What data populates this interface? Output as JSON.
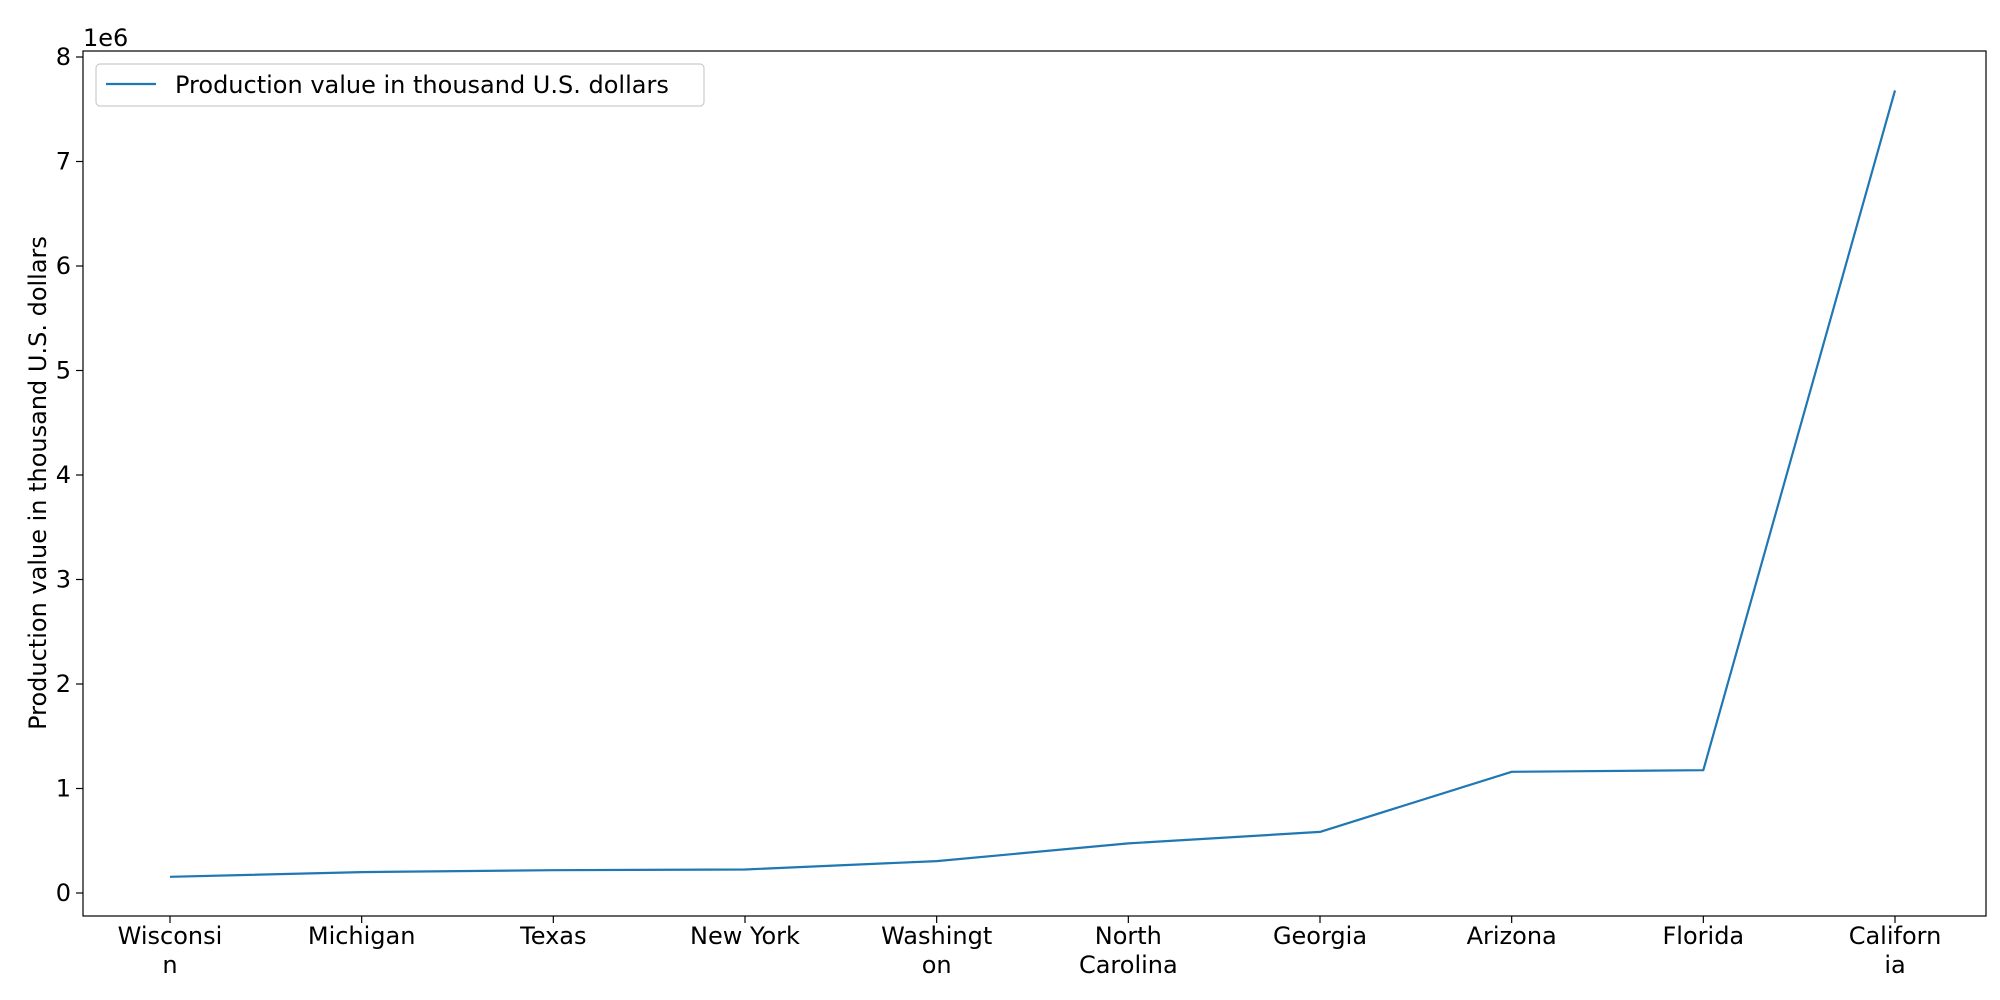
{
  "chart_data": {
    "type": "line",
    "categories": [
      "Wisconsin",
      "Michigan",
      "Texas",
      "New York",
      "Washington",
      "North Carolina",
      "Georgia",
      "Arizona",
      "Florida",
      "California"
    ],
    "category_tick_lines": [
      [
        "Wisconsi",
        "n"
      ],
      [
        "Michigan"
      ],
      [
        "Texas"
      ],
      [
        "New York"
      ],
      [
        "Washingt",
        "on"
      ],
      [
        "North",
        "Carolina"
      ],
      [
        "Georgia"
      ],
      [
        "Arizona"
      ],
      [
        "Florida"
      ],
      [
        "Californ",
        "ia"
      ]
    ],
    "series": [
      {
        "name": "Production value in thousand U.S. dollars",
        "values": [
          155000,
          200000,
          218000,
          225000,
          305000,
          475000,
          585000,
          1160000,
          1175000,
          7680000
        ],
        "color": "#1f77b4"
      }
    ],
    "title": "",
    "xlabel": "",
    "ylabel": "Production value in thousand U.S. dollars",
    "ylim": [
      -200000,
      8000000
    ],
    "yticks": [
      0,
      1000000,
      2000000,
      3000000,
      4000000,
      5000000,
      6000000,
      7000000,
      8000000
    ],
    "ytick_labels": [
      "0",
      "1",
      "2",
      "3",
      "4",
      "5",
      "6",
      "7",
      "8"
    ],
    "y_offset_text": "1e6",
    "grid": false,
    "legend_position": "top-left"
  }
}
